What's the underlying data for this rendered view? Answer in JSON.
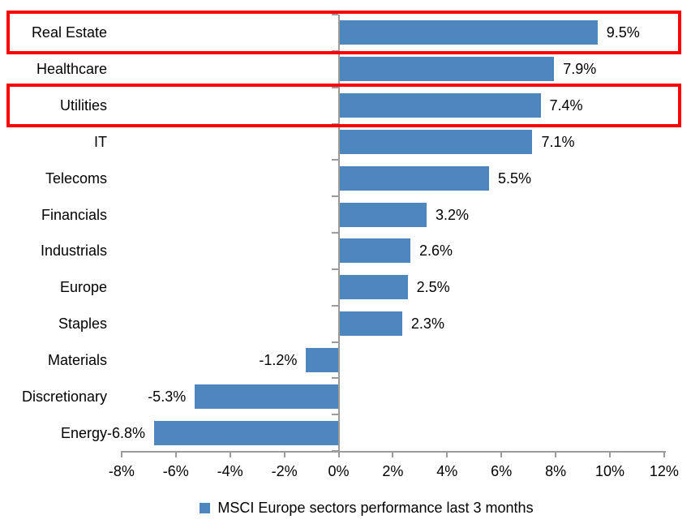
{
  "chart_data": {
    "type": "bar",
    "orientation": "horizontal",
    "categories": [
      "Real Estate",
      "Healthcare",
      "Utilities",
      "IT",
      "Telecoms",
      "Financials",
      "Industrials",
      "Europe",
      "Staples",
      "Materials",
      "Discretionary",
      "Energy"
    ],
    "values": [
      9.5,
      7.9,
      7.4,
      7.1,
      5.5,
      3.2,
      2.6,
      2.5,
      2.3,
      -1.2,
      -5.3,
      -6.8
    ],
    "data_labels": [
      "9.5%",
      "7.9%",
      "7.4%",
      "7.1%",
      "5.5%",
      "3.2%",
      "2.6%",
      "2.5%",
      "2.3%",
      "-1.2%",
      "-5.3%",
      "-6.8%"
    ],
    "x_ticks": [
      -8,
      -6,
      -4,
      -2,
      0,
      2,
      4,
      6,
      8,
      10,
      12
    ],
    "x_tick_labels": [
      "-8%",
      "-6%",
      "-4%",
      "-2%",
      "0%",
      "2%",
      "4%",
      "6%",
      "8%",
      "10%",
      "12%"
    ],
    "xlim": [
      -8,
      12
    ],
    "grid": false,
    "legend": "MSCI Europe sectors performance last 3 months",
    "legend_position": "bottom",
    "highlighted_categories": [
      "Real Estate",
      "Utilities"
    ],
    "colors": {
      "bar": "#4E86BE",
      "highlight_box": "#FE0000",
      "axis": "#9C9C9C",
      "text": "#000000",
      "background": "#FFFFFF"
    }
  }
}
